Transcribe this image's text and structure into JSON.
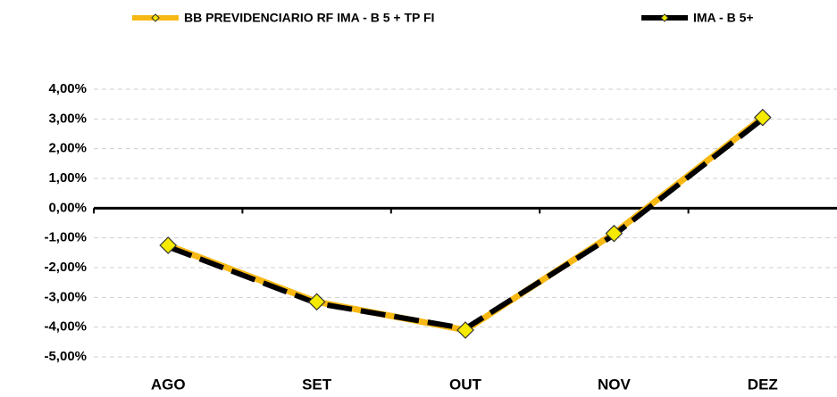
{
  "chart_data": {
    "type": "line",
    "categories": [
      "AGO",
      "SET",
      "OUT",
      "NOV",
      "DEZ"
    ],
    "series": [
      {
        "name": "BB PREVIDENCIARIO RF IMA - B 5 + TP FI",
        "color": "#f7b813",
        "values": [
          -1.25,
          -3.15,
          -4.1,
          -0.85,
          3.05
        ]
      },
      {
        "name": "IMA - B 5+",
        "color": "#000000",
        "values": [
          -1.3,
          -3.2,
          -4.05,
          -0.9,
          3.0
        ]
      }
    ],
    "ylim": [
      -5,
      4
    ],
    "yticks": [
      {
        "value": -5,
        "label": "-5,00%"
      },
      {
        "value": -4,
        "label": "-4,00%"
      },
      {
        "value": -3,
        "label": "-3,00%"
      },
      {
        "value": -2,
        "label": "-2,00%"
      },
      {
        "value": -1,
        "label": "-1,00%"
      },
      {
        "value": 0,
        "label": "0,00%"
      },
      {
        "value": 1,
        "label": "1,00%"
      },
      {
        "value": 2,
        "label": "2,00%"
      },
      {
        "value": 3,
        "label": "3,00%"
      },
      {
        "value": 4,
        "label": "4,00%"
      }
    ],
    "grid": true
  }
}
